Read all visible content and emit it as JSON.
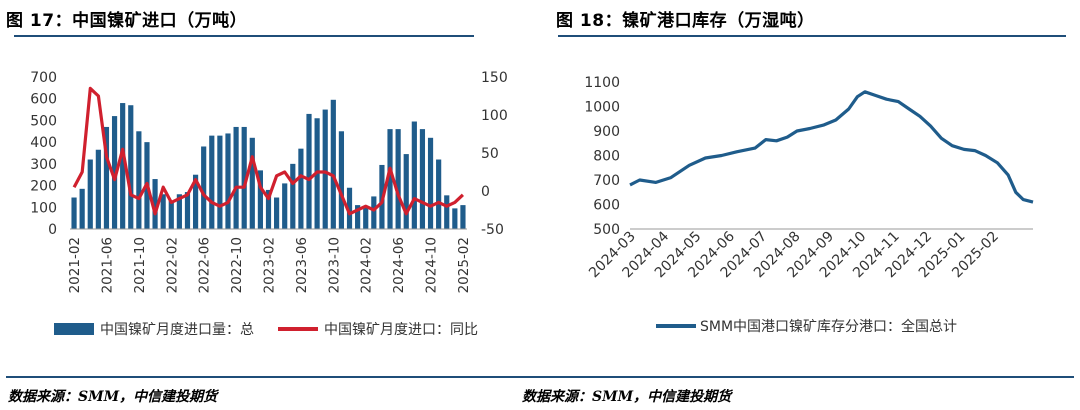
{
  "left": {
    "title": "图 17：中国镍矿进口（万吨）",
    "source": "数据来源：SMM，中信建投期货"
  },
  "right": {
    "title": "图 18：镍矿港口库存（万湿吨）",
    "source": "数据来源：SMM，中信建投期货"
  },
  "colors": {
    "bar": "#1f5c8b",
    "red_line": "#d0202e",
    "blue_line": "#1f5c8b",
    "rule": "#1f4e79"
  },
  "chart_data": [
    {
      "type": "bar",
      "x_tick_labels": [
        "2021-02",
        "2021-06",
        "2021-10",
        "2022-02",
        "2022-06",
        "2022-10",
        "2023-02",
        "2023-06",
        "2023-10",
        "2024-02",
        "2024-06",
        "2024-10",
        "2025-02"
      ],
      "x": [
        "2021-02",
        "2021-03",
        "2021-04",
        "2021-05",
        "2021-06",
        "2021-07",
        "2021-08",
        "2021-09",
        "2021-10",
        "2021-11",
        "2021-12",
        "2022-01",
        "2022-02",
        "2022-03",
        "2022-04",
        "2022-05",
        "2022-06",
        "2022-07",
        "2022-08",
        "2022-09",
        "2022-10",
        "2022-11",
        "2022-12",
        "2023-01",
        "2023-02",
        "2023-03",
        "2023-04",
        "2023-05",
        "2023-06",
        "2023-07",
        "2023-08",
        "2023-09",
        "2023-10",
        "2023-11",
        "2023-12",
        "2024-01",
        "2024-02",
        "2024-03",
        "2024-04",
        "2024-05",
        "2024-06",
        "2024-07",
        "2024-08",
        "2024-09",
        "2024-10",
        "2024-11",
        "2024-12",
        "2025-01",
        "2025-02"
      ],
      "y_left_ticks": [
        "0",
        "100",
        "200",
        "300",
        "400",
        "500",
        "600",
        "700"
      ],
      "y_left_lim": [
        0,
        700
      ],
      "y_right_ticks": [
        "-50",
        "0",
        "50",
        "100",
        "150"
      ],
      "y_right_lim": [
        -50,
        150
      ],
      "series": [
        {
          "name": "中国镍矿月度进口量：总",
          "axis": "left",
          "values": [
            145,
            185,
            320,
            365,
            470,
            520,
            580,
            570,
            450,
            400,
            230,
            160,
            130,
            160,
            170,
            250,
            380,
            430,
            430,
            440,
            470,
            470,
            420,
            270,
            180,
            145,
            210,
            300,
            370,
            530,
            510,
            550,
            595,
            450,
            190,
            110,
            105,
            150,
            295,
            460,
            460,
            345,
            495,
            460,
            420,
            320,
            155,
            95,
            110
          ]
        },
        {
          "name": "中国镍矿月度进口：同比",
          "axis": "right",
          "values": [
            5,
            25,
            135,
            125,
            45,
            15,
            55,
            -5,
            -10,
            10,
            -30,
            5,
            -15,
            -10,
            -5,
            15,
            -5,
            -15,
            -20,
            -15,
            5,
            5,
            45,
            5,
            -10,
            20,
            25,
            10,
            20,
            15,
            25,
            25,
            20,
            -5,
            -30,
            -25,
            -20,
            -25,
            -15,
            30,
            -5,
            -30,
            -10,
            -15,
            -20,
            -15,
            -20,
            -15,
            -5
          ]
        }
      ]
    },
    {
      "type": "line",
      "x_tick_labels": [
        "2024-03",
        "2024-04",
        "2024-05",
        "2024-06",
        "2024-07",
        "2024-08",
        "2024-09",
        "2024-10",
        "2024-11",
        "2024-12",
        "2025-01",
        "2025-02"
      ],
      "y_ticks": [
        "500",
        "600",
        "700",
        "800",
        "900",
        "1000",
        "1100"
      ],
      "ylim": [
        500,
        1100
      ],
      "x_range": [
        "2024-03-01",
        "2025-03-10"
      ],
      "series": [
        {
          "name": "SMM中国港口镍矿库存分港口：全国总计",
          "points": [
            [
              "2024-03-01",
              680
            ],
            [
              "2024-03-10",
              700
            ],
            [
              "2024-03-25",
              690
            ],
            [
              "2024-04-08",
              710
            ],
            [
              "2024-04-25",
              760
            ],
            [
              "2024-05-10",
              790
            ],
            [
              "2024-05-25",
              800
            ],
            [
              "2024-06-08",
              815
            ],
            [
              "2024-06-25",
              830
            ],
            [
              "2024-07-05",
              865
            ],
            [
              "2024-07-15",
              860
            ],
            [
              "2024-07-25",
              875
            ],
            [
              "2024-08-03",
              900
            ],
            [
              "2024-08-15",
              910
            ],
            [
              "2024-08-28",
              925
            ],
            [
              "2024-09-08",
              945
            ],
            [
              "2024-09-20",
              990
            ],
            [
              "2024-09-28",
              1040
            ],
            [
              "2024-10-05",
              1060
            ],
            [
              "2024-10-15",
              1045
            ],
            [
              "2024-10-25",
              1030
            ],
            [
              "2024-11-05",
              1020
            ],
            [
              "2024-11-15",
              990
            ],
            [
              "2024-11-25",
              960
            ],
            [
              "2024-12-05",
              920
            ],
            [
              "2024-12-15",
              870
            ],
            [
              "2024-12-25",
              840
            ],
            [
              "2025-01-05",
              825
            ],
            [
              "2025-01-15",
              820
            ],
            [
              "2025-01-25",
              800
            ],
            [
              "2025-02-05",
              770
            ],
            [
              "2025-02-15",
              720
            ],
            [
              "2025-02-22",
              650
            ],
            [
              "2025-03-01",
              620
            ],
            [
              "2025-03-10",
              610
            ]
          ]
        }
      ]
    }
  ]
}
